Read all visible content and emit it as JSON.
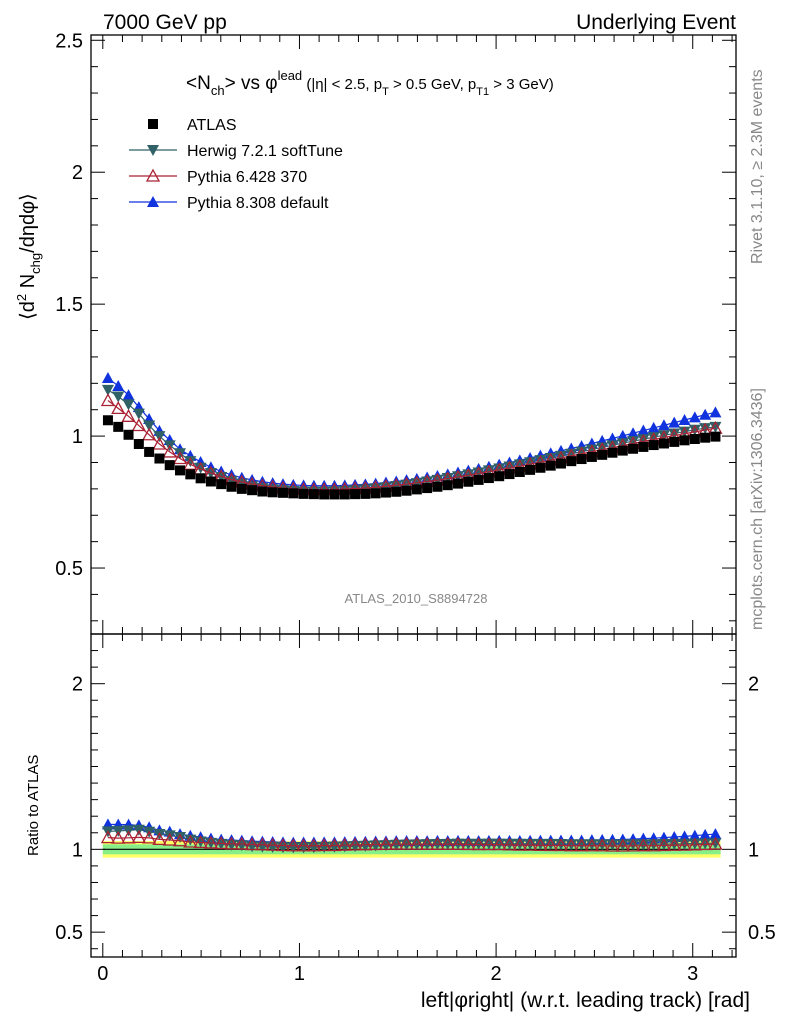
{
  "header": {
    "left": "7000 GeV pp",
    "right": "Underlying Event"
  },
  "side_texts": {
    "rivet": "Rivet 3.1.10, ≥ 2.3M events",
    "mcplots": "mcplots.cern.ch [arXiv:1306.3436]"
  },
  "watermark": "ATLAS_2010_S8894728",
  "chart_data": [
    {
      "type": "scatter",
      "title": "<N_ch> vs φ^lead (|η| < 2.5, p_T > 0.5 GeV, p_T1 > 3 GeV)",
      "title_parts": {
        "n": "N",
        "ch": "ch",
        "vs": " vs ",
        "phi": "φ",
        "lead": "lead",
        "cuts_a": " (|η| < 2.5, p",
        "t1": "T",
        "cuts_b": " > 0.5 GeV, p",
        "t2": "T1",
        "cuts_c": " > 3 GeV)"
      },
      "ylabel": "⟨d² N_chg/dηdφ⟩",
      "ylabel_parts": {
        "pre": "⟨d",
        "two": "2",
        "n": " N",
        "chg": "chg",
        "post": "/dηdφ⟩"
      },
      "xlabel": "left|φright| (w.r.t. leading track) [rad]",
      "xlim": [
        -0.06,
        3.22
      ],
      "ylim": [
        0.25,
        2.52
      ],
      "y_ticks": [
        "0.5",
        "1",
        "1.5",
        "2",
        "2.5"
      ],
      "x_ticks": [
        "0",
        "1",
        "2",
        "3"
      ],
      "legend_position": "top-left",
      "x": [
        0.0262,
        0.0785,
        0.1309,
        0.1833,
        0.2356,
        0.288,
        0.3403,
        0.3927,
        0.4451,
        0.4974,
        0.5498,
        0.6021,
        0.6545,
        0.7069,
        0.7592,
        0.8116,
        0.8639,
        0.9163,
        0.9687,
        1.021,
        1.0734,
        1.1257,
        1.1781,
        1.2305,
        1.2828,
        1.3352,
        1.3875,
        1.4399,
        1.4923,
        1.5446,
        1.597,
        1.6493,
        1.7017,
        1.7541,
        1.8064,
        1.8588,
        1.9111,
        1.9635,
        2.0159,
        2.0682,
        2.1206,
        2.1729,
        2.2253,
        2.2777,
        2.33,
        2.3824,
        2.4347,
        2.4871,
        2.5395,
        2.5918,
        2.6442,
        2.6965,
        2.7489,
        2.8013,
        2.8536,
        2.906,
        2.9583,
        3.0107,
        3.0631,
        3.1154
      ],
      "series": [
        {
          "name": "ATLAS",
          "color": "#000000",
          "marker": "square",
          "values": [
            1.06,
            1.035,
            1.005,
            0.97,
            0.94,
            0.915,
            0.89,
            0.87,
            0.855,
            0.84,
            0.828,
            0.818,
            0.808,
            0.8,
            0.795,
            0.79,
            0.787,
            0.785,
            0.783,
            0.781,
            0.78,
            0.779,
            0.779,
            0.779,
            0.78,
            0.781,
            0.783,
            0.786,
            0.789,
            0.793,
            0.798,
            0.803,
            0.808,
            0.814,
            0.82,
            0.827,
            0.834,
            0.841,
            0.848,
            0.856,
            0.864,
            0.872,
            0.88,
            0.888,
            0.896,
            0.905,
            0.913,
            0.921,
            0.929,
            0.937,
            0.945,
            0.952,
            0.959,
            0.966,
            0.972,
            0.978,
            0.984,
            0.989,
            0.994,
            0.998
          ]
        },
        {
          "name": "Herwig 7.2.1 softTune",
          "color": "#2f6166",
          "marker": "triangle-down",
          "values": [
            1.175,
            1.15,
            1.12,
            1.085,
            1.04,
            1.0,
            0.965,
            0.935,
            0.905,
            0.88,
            0.86,
            0.845,
            0.83,
            0.82,
            0.81,
            0.803,
            0.798,
            0.795,
            0.792,
            0.79,
            0.79,
            0.79,
            0.791,
            0.793,
            0.795,
            0.798,
            0.802,
            0.806,
            0.811,
            0.816,
            0.822,
            0.828,
            0.834,
            0.841,
            0.848,
            0.855,
            0.862,
            0.87,
            0.877,
            0.885,
            0.893,
            0.901,
            0.909,
            0.917,
            0.925,
            0.933,
            0.941,
            0.949,
            0.957,
            0.965,
            0.973,
            0.981,
            0.988,
            0.996,
            1.003,
            1.01,
            1.017,
            1.024,
            1.03,
            1.035
          ]
        },
        {
          "name": "Pythia 6.428 370",
          "color": "#aa2233",
          "marker": "triangle-up-open",
          "values": [
            1.135,
            1.105,
            1.075,
            1.04,
            1.005,
            0.97,
            0.94,
            0.915,
            0.893,
            0.875,
            0.86,
            0.847,
            0.835,
            0.826,
            0.818,
            0.812,
            0.807,
            0.803,
            0.8,
            0.798,
            0.797,
            0.797,
            0.797,
            0.799,
            0.801,
            0.803,
            0.806,
            0.81,
            0.814,
            0.818,
            0.823,
            0.828,
            0.833,
            0.839,
            0.845,
            0.851,
            0.858,
            0.865,
            0.872,
            0.879,
            0.886,
            0.894,
            0.901,
            0.909,
            0.917,
            0.925,
            0.933,
            0.941,
            0.949,
            0.956,
            0.964,
            0.972,
            0.98,
            0.987,
            0.995,
            1.002,
            1.009,
            1.016,
            1.023,
            1.03
          ]
        },
        {
          "name": "Pythia 8.308 default",
          "color": "#1133dd",
          "marker": "triangle-up",
          "values": [
            1.22,
            1.19,
            1.155,
            1.11,
            1.065,
            1.02,
            0.985,
            0.95,
            0.925,
            0.902,
            0.882,
            0.866,
            0.853,
            0.842,
            0.834,
            0.827,
            0.822,
            0.818,
            0.815,
            0.813,
            0.812,
            0.812,
            0.812,
            0.813,
            0.815,
            0.817,
            0.82,
            0.824,
            0.828,
            0.833,
            0.838,
            0.843,
            0.849,
            0.855,
            0.862,
            0.869,
            0.876,
            0.884,
            0.892,
            0.9,
            0.908,
            0.917,
            0.926,
            0.935,
            0.944,
            0.953,
            0.962,
            0.972,
            0.982,
            0.991,
            1.001,
            1.011,
            1.021,
            1.031,
            1.041,
            1.051,
            1.061,
            1.071,
            1.081,
            1.09
          ]
        }
      ]
    },
    {
      "type": "scatter",
      "title": "",
      "ylabel": "Ratio to ATLAS",
      "xlabel": "left|φright| (w.r.t. leading track) [rad]",
      "xlim": [
        -0.06,
        3.22
      ],
      "ylim": [
        0.35,
        2.3
      ],
      "y_ticks": [
        "0.5",
        "1",
        "2"
      ],
      "reference_line": 1.0,
      "uncertainty_band": {
        "inner": [
          0.97,
          1.03
        ],
        "outer": [
          0.95,
          1.05
        ],
        "inner_color": "#88ee88",
        "outer_color": "#ffff66"
      }
    }
  ]
}
